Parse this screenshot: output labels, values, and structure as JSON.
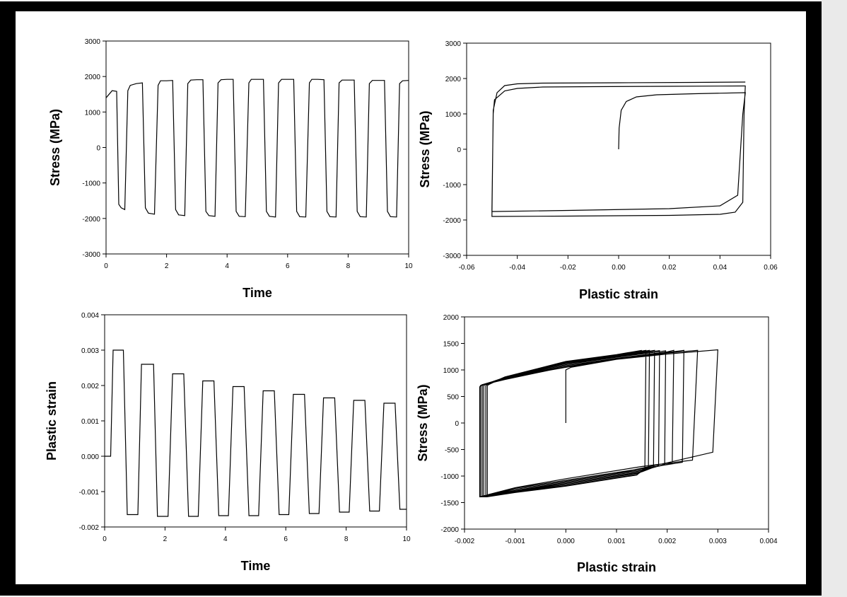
{
  "chart_data": [
    {
      "type": "line",
      "xlabel": "Time",
      "ylabel": "Stress (MPa)",
      "xlim": [
        0,
        10
      ],
      "ylim": [
        -3000,
        3000
      ],
      "xticks": [
        "0",
        "2",
        "4",
        "6",
        "8",
        "10"
      ],
      "yticks": [
        "-3000",
        "-2000",
        "-1000",
        "0",
        "1000",
        "2000",
        "3000"
      ],
      "series": [
        {
          "x": [
            0,
            0.2,
            0.35,
            0.42,
            0.5,
            0.62,
            0.72,
            0.8,
            1.0,
            1.2,
            1.3,
            1.4,
            1.6,
            1.72,
            1.8,
            2.0,
            2.2,
            2.3,
            2.4,
            2.6,
            2.7,
            2.8,
            3.0,
            3.2,
            3.3,
            3.4,
            3.6,
            3.7,
            3.8,
            4.0,
            4.2,
            4.3,
            4.4,
            4.6,
            4.72,
            4.8,
            5.0,
            5.2,
            5.3,
            5.4,
            5.6,
            5.7,
            5.8,
            6.0,
            6.2,
            6.3,
            6.4,
            6.6,
            6.72,
            6.8,
            7.0,
            7.2,
            7.3,
            7.4,
            7.6,
            7.7,
            7.8,
            8.0,
            8.2,
            8.3,
            8.4,
            8.6,
            8.7,
            8.8,
            9.0,
            9.2,
            9.3,
            9.4,
            9.6,
            9.7,
            9.8,
            10.0
          ],
          "y": [
            1400,
            1600,
            1580,
            -1600,
            -1700,
            -1750,
            1600,
            1750,
            1800,
            1820,
            -1700,
            -1850,
            -1880,
            1750,
            1880,
            1880,
            1890,
            -1750,
            -1900,
            -1920,
            1800,
            1900,
            1910,
            1910,
            -1800,
            -1920,
            -1940,
            1820,
            1910,
            1920,
            1920,
            -1800,
            -1940,
            -1950,
            1820,
            1920,
            1920,
            1920,
            -1800,
            -1940,
            -1960,
            1820,
            1920,
            1920,
            1920,
            -1800,
            -1950,
            -1960,
            1820,
            1920,
            1920,
            1910,
            -1800,
            -1950,
            -1960,
            1820,
            1900,
            1900,
            1900,
            -1800,
            -1950,
            -1960,
            1800,
            1890,
            1890,
            1890,
            -1800,
            -1950,
            -1960,
            1800,
            1880,
            1890
          ]
        }
      ]
    },
    {
      "type": "line",
      "xlabel": "Plastic strain",
      "ylabel": "Stress (MPa)",
      "xlim": [
        -0.06,
        0.06
      ],
      "ylim": [
        -3000,
        3000
      ],
      "xticks": [
        "-0.06",
        "-0.04",
        "-0.02",
        "0.00",
        "0.02",
        "0.04",
        "0.06"
      ],
      "yticks": [
        "-3000",
        "-2000",
        "-1000",
        "0",
        "1000",
        "2000",
        "3000"
      ],
      "series": [
        {
          "x": [
            0,
            0.0002,
            0.001,
            0.003,
            0.007,
            0.015,
            0.03,
            0.05,
            0.05,
            0.049,
            0.047,
            0.04,
            0.02,
            -0.02,
            -0.049,
            -0.05,
            -0.05,
            -0.0495,
            -0.049,
            -0.045,
            -0.04,
            -0.03,
            -0.01,
            0.02,
            0.05,
            0.05,
            0.0495,
            0.049,
            0.046,
            0.04,
            0.02,
            -0.02,
            -0.049,
            -0.05,
            -0.05,
            -0.0495,
            -0.048,
            -0.045,
            -0.04,
            -0.03,
            0.0,
            0.03,
            0.05,
            0.05
          ],
          "y": [
            0,
            600,
            1100,
            1350,
            1480,
            1540,
            1570,
            1600,
            1600,
            1000,
            -1300,
            -1600,
            -1680,
            -1730,
            -1760,
            -1760,
            -1700,
            1000,
            1400,
            1650,
            1720,
            1760,
            1770,
            1780,
            1790,
            1800,
            1000,
            -1500,
            -1780,
            -1840,
            -1870,
            -1890,
            -1900,
            -1900,
            -1900,
            1100,
            1600,
            1800,
            1850,
            1870,
            1880,
            1890,
            1900,
            1900
          ]
        }
      ]
    },
    {
      "type": "line",
      "xlabel": "Time",
      "ylabel": "Plastic strain",
      "xlim": [
        0,
        10
      ],
      "ylim": [
        -0.002,
        0.004
      ],
      "xticks": [
        "0",
        "2",
        "4",
        "6",
        "8",
        "10"
      ],
      "yticks": [
        "-0.002",
        "-0.001",
        "0.000",
        "0.001",
        "0.002",
        "0.003",
        "0.004"
      ],
      "series": [
        {
          "x": [
            0,
            0.2,
            0.28,
            0.62,
            0.75,
            1.1,
            1.22,
            1.62,
            1.75,
            2.1,
            2.25,
            2.62,
            2.78,
            3.1,
            3.25,
            3.62,
            3.78,
            4.1,
            4.25,
            4.62,
            4.78,
            5.1,
            5.25,
            5.62,
            5.78,
            6.1,
            6.25,
            6.62,
            6.78,
            7.1,
            7.25,
            7.62,
            7.78,
            8.1,
            8.25,
            8.62,
            8.78,
            9.1,
            9.25,
            9.62,
            9.78,
            10.0
          ],
          "y": [
            0,
            0,
            0.003,
            0.003,
            -0.00165,
            -0.00165,
            0.0026,
            0.0026,
            -0.0017,
            -0.0017,
            0.00233,
            0.00233,
            -0.0017,
            -0.0017,
            0.00213,
            0.00213,
            -0.00168,
            -0.00168,
            0.00197,
            0.00197,
            -0.00168,
            -0.00168,
            0.00185,
            0.00185,
            -0.00165,
            -0.00165,
            0.00175,
            0.00175,
            -0.00162,
            -0.00162,
            0.00165,
            0.00165,
            -0.00158,
            -0.00158,
            0.00158,
            0.00158,
            -0.00155,
            -0.00155,
            0.0015,
            0.0015,
            -0.0015,
            -0.0015
          ]
        }
      ]
    },
    {
      "type": "line",
      "xlabel": "Plastic strain",
      "ylabel": "Stress (MPa)",
      "xlim": [
        -0.002,
        0.004
      ],
      "ylim": [
        -2000,
        2000
      ],
      "xticks": [
        "-0.002",
        "-0.001",
        "0.000",
        "0.001",
        "0.002",
        "0.003",
        "0.004"
      ],
      "yticks": [
        "-2000",
        "-1500",
        "-1000",
        "-500",
        "0",
        "500",
        "1000",
        "1500",
        "2000"
      ],
      "series": [
        {
          "x": [
            0,
            0,
            0.0001,
            0.001,
            0.002,
            0.003,
            0.003,
            0.0029,
            0.002,
            0.001,
            0,
            -0.001,
            -0.00165,
            -0.00165,
            -0.00163,
            -0.0012,
            0,
            0.001,
            0.002,
            0.0026,
            0.0026,
            0.0025,
            0.0015,
            0,
            -0.001,
            -0.0017,
            -0.0017,
            -0.00168,
            -0.0012,
            0,
            0.001,
            0.002,
            0.00233,
            0.00233,
            0.0023,
            0.0015,
            0,
            -0.001,
            -0.0017,
            -0.0017,
            -0.00168,
            -0.0012,
            0,
            0.001,
            0.002,
            0.00213,
            0.00213,
            0.0021,
            0.0015,
            0,
            -0.001,
            -0.00168,
            -0.00168,
            -0.00166,
            -0.0012,
            0,
            0.001,
            0.00197,
            0.00197,
            0.00195,
            0.0015,
            0,
            -0.001,
            -0.00168,
            -0.00168,
            -0.00166,
            -0.0012,
            0,
            0.001,
            0.00185,
            0.00185,
            0.00183,
            0.0015,
            0,
            -0.001,
            -0.00165,
            -0.00165,
            -0.00163,
            -0.0012,
            0,
            0.001,
            0.00175,
            0.00175,
            0.00173,
            0.0014,
            0,
            -0.001,
            -0.00162,
            -0.00162,
            -0.0016,
            -0.0012,
            0,
            0.001,
            0.00165,
            0.00165,
            0.00163,
            0.0014,
            0,
            -0.001,
            -0.00158,
            -0.00158,
            -0.00156,
            -0.0012,
            0,
            0.001,
            0.00158,
            0.00158,
            0.00156,
            0.0014,
            0,
            -0.001,
            -0.00155,
            -0.00155,
            -0.00153,
            -0.0012,
            0,
            0.001,
            0.0015,
            0.0015
          ],
          "y": [
            0,
            1000,
            1050,
            1200,
            1300,
            1380,
            1380,
            -550,
            -750,
            -950,
            -1100,
            -1250,
            -1380,
            700,
            720,
            850,
            1050,
            1200,
            1320,
            1370,
            1370,
            -700,
            -820,
            -1050,
            -1220,
            -1390,
            680,
            710,
            820,
            1060,
            1210,
            1330,
            1370,
            1370,
            -740,
            -860,
            -1080,
            -1230,
            -1390,
            680,
            710,
            830,
            1080,
            1220,
            1340,
            1370,
            1370,
            -760,
            -880,
            -1100,
            -1250,
            -1390,
            690,
            720,
            840,
            1100,
            1240,
            1360,
            1370,
            -780,
            -900,
            -1120,
            -1270,
            -1390,
            690,
            720,
            850,
            1120,
            1250,
            1365,
            1370,
            -800,
            -920,
            -1140,
            -1280,
            -1390,
            700,
            720,
            860,
            1130,
            1260,
            1370,
            1370,
            -820,
            -950,
            -1160,
            -1290,
            -1390,
            700,
            720,
            860,
            1140,
            1270,
            1370,
            1370,
            -840,
            -970,
            -1180,
            -1300,
            -1390,
            700,
            720,
            870,
            1150,
            1280,
            1370,
            1370,
            -850,
            -980,
            -1190,
            -1310,
            -1390,
            700,
            720,
            870,
            1160,
            1290,
            1370,
            1370
          ]
        }
      ]
    }
  ]
}
